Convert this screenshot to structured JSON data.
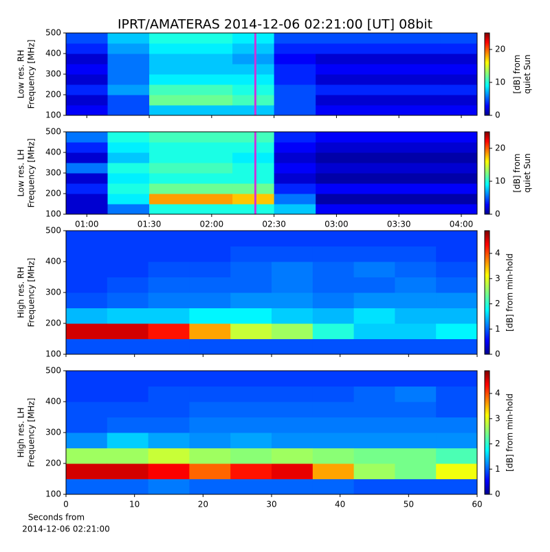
{
  "title": "IPRT/AMATERAS 2014-12-06 02:21:00 [UT]   08bit",
  "xlabel": [
    "Seconds from",
    "2014-12-06 02:21:00"
  ],
  "chart_data": [
    {
      "type": "heatmap",
      "ylabel": [
        "Low res. RH",
        "Frequency [MHz]"
      ],
      "zlabel": [
        "[dB] from",
        "quiet Sun"
      ],
      "x_edges": [
        50,
        70,
        90,
        110,
        130,
        150,
        170,
        190,
        210,
        230,
        247.6
      ],
      "xlim": [
        50,
        247.6
      ],
      "y_edges": [
        100,
        150,
        200,
        250,
        300,
        350,
        400,
        450,
        500
      ],
      "ylim": [
        100,
        500
      ],
      "yticks": [
        100,
        200,
        300,
        400,
        500
      ],
      "zlim": [
        0,
        25
      ],
      "zticks": [
        0,
        10,
        20
      ],
      "colormap": "jet",
      "marker_x": 141,
      "marker_color": "#cc33dd",
      "z": [
        [
          3,
          2,
          4,
          2,
          3,
          2,
          4,
          5
        ],
        [
          5,
          5,
          7,
          6,
          6,
          6,
          7,
          8
        ],
        [
          8,
          12,
          11,
          9,
          8,
          8,
          9,
          10
        ],
        [
          8,
          12,
          11,
          9,
          8,
          8,
          9,
          10
        ],
        [
          8,
          11,
          10,
          9,
          8,
          7,
          8,
          9
        ],
        [
          5,
          5,
          5,
          4,
          4,
          3,
          4,
          5
        ],
        [
          3,
          2,
          4,
          2,
          3,
          2,
          4,
          5
        ],
        [
          3,
          2,
          4,
          2,
          3,
          2,
          4,
          5
        ],
        [
          3,
          2,
          4,
          2,
          3,
          2,
          4,
          5
        ],
        [
          3,
          2,
          4,
          2,
          3,
          2,
          4,
          5
        ]
      ]
    },
    {
      "type": "heatmap",
      "ylabel": [
        "Low res. LH",
        "Frequency [MHz]"
      ],
      "zlabel": [
        "[dB] from",
        "quiet Sun"
      ],
      "x_edges": [
        50,
        70,
        90,
        110,
        130,
        150,
        170,
        190,
        210,
        230,
        247.6
      ],
      "xlim": [
        50,
        247.6
      ],
      "xticks": [
        {
          "value": 60,
          "label": "01:00"
        },
        {
          "value": 90,
          "label": "01:30"
        },
        {
          "value": 120,
          "label": "02:00"
        },
        {
          "value": 150,
          "label": "02:30"
        },
        {
          "value": 180,
          "label": "03:00"
        },
        {
          "value": 210,
          "label": "03:30"
        },
        {
          "value": 240,
          "label": "04:00"
        }
      ],
      "y_edges": [
        100,
        150,
        200,
        250,
        300,
        350,
        400,
        450,
        500
      ],
      "ylim": [
        100,
        500
      ],
      "yticks": [
        100,
        200,
        300,
        400,
        500
      ],
      "zlim": [
        0,
        25
      ],
      "zticks": [
        0,
        10,
        20
      ],
      "colormap": "jet",
      "marker_x": 141,
      "marker_color": "#cc33dd",
      "z": [
        [
          2,
          2,
          4,
          2,
          6,
          2,
          4,
          6
        ],
        [
          6,
          9,
          10,
          9,
          10,
          8,
          9,
          10
        ],
        [
          10,
          18,
          12,
          10,
          11,
          10,
          10,
          11
        ],
        [
          10,
          18,
          12,
          10,
          11,
          10,
          10,
          11
        ],
        [
          10,
          17,
          12,
          10,
          10,
          9,
          10,
          11
        ],
        [
          8,
          6,
          4,
          2,
          3,
          2,
          3,
          4
        ],
        [
          3,
          1,
          3,
          1,
          2,
          1,
          2,
          3
        ],
        [
          3,
          1,
          3,
          1,
          2,
          1,
          2,
          3
        ],
        [
          3,
          1,
          3,
          1,
          2,
          1,
          2,
          3
        ],
        [
          3,
          1,
          3,
          1,
          2,
          1,
          2,
          3
        ]
      ]
    },
    {
      "type": "heatmap",
      "ylabel": [
        "High res. RH",
        "Frequency [MHz]"
      ],
      "zlabel": [
        "[dB] from min-hold"
      ],
      "x_edges": [
        0,
        6,
        12,
        18,
        24,
        30,
        36,
        42,
        48,
        54,
        60
      ],
      "xlim": [
        0,
        60
      ],
      "y_edges": [
        100,
        150,
        200,
        250,
        300,
        350,
        400,
        450,
        500
      ],
      "ylim": [
        100,
        500
      ],
      "yticks": [
        100,
        200,
        300,
        400,
        500
      ],
      "zlim": [
        0,
        4.9
      ],
      "zticks": [
        0,
        1,
        2,
        3,
        4
      ],
      "colormap": "jet",
      "z": [
        [
          1.0,
          4.5,
          1.5,
          1.0,
          0.9,
          0.9,
          0.9,
          0.9
        ],
        [
          1.0,
          4.5,
          1.6,
          1.1,
          1.0,
          0.9,
          0.9,
          0.9
        ],
        [
          1.0,
          4.2,
          1.6,
          1.2,
          1.1,
          1.0,
          0.9,
          0.9
        ],
        [
          1.0,
          3.5,
          1.8,
          1.2,
          1.1,
          1.0,
          0.9,
          0.9
        ],
        [
          1.0,
          2.8,
          1.8,
          1.3,
          1.1,
          1.1,
          1.0,
          0.9
        ],
        [
          1.0,
          2.6,
          1.6,
          1.3,
          1.2,
          1.2,
          1.0,
          0.9
        ],
        [
          1.0,
          2.0,
          1.5,
          1.2,
          1.1,
          1.1,
          1.0,
          0.9
        ],
        [
          1.0,
          1.6,
          1.7,
          1.3,
          1.1,
          1.2,
          1.0,
          0.9
        ],
        [
          1.0,
          1.6,
          1.5,
          1.3,
          1.2,
          1.1,
          1.0,
          0.9
        ],
        [
          1.0,
          1.8,
          1.5,
          1.3,
          1.1,
          1.0,
          0.9,
          0.9
        ]
      ]
    },
    {
      "type": "heatmap",
      "ylabel": [
        "High res. LH",
        "Frequency [MHz]"
      ],
      "zlabel": [
        "[dB] from min-hold"
      ],
      "x_edges": [
        0,
        6,
        12,
        18,
        24,
        30,
        36,
        42,
        48,
        54,
        60
      ],
      "xlim": [
        0,
        60
      ],
      "xticks": [
        0,
        10,
        20,
        30,
        40,
        50,
        60
      ],
      "y_edges": [
        100,
        150,
        200,
        250,
        300,
        350,
        400,
        450,
        500
      ],
      "ylim": [
        100,
        500
      ],
      "yticks": [
        100,
        200,
        300,
        400,
        500
      ],
      "zlim": [
        0,
        4.9
      ],
      "zticks": [
        0,
        1,
        2,
        3,
        4
      ],
      "colormap": "jet",
      "z": [
        [
          1.1,
          4.5,
          2.6,
          1.3,
          1.0,
          1.0,
          0.9,
          0.9
        ],
        [
          1.1,
          4.5,
          2.6,
          1.6,
          1.1,
          1.0,
          0.9,
          0.9
        ],
        [
          1.2,
          4.3,
          2.8,
          1.4,
          1.1,
          1.0,
          1.0,
          0.9
        ],
        [
          1.1,
          3.8,
          2.6,
          1.3,
          1.2,
          1.1,
          1.0,
          0.9
        ],
        [
          1.1,
          4.2,
          2.5,
          1.4,
          1.2,
          1.1,
          1.0,
          0.9
        ],
        [
          1.1,
          4.4,
          2.6,
          1.3,
          1.2,
          1.1,
          1.0,
          0.9
        ],
        [
          1.1,
          3.5,
          2.5,
          1.3,
          1.2,
          1.1,
          1.0,
          0.9
        ],
        [
          1.0,
          2.6,
          2.4,
          1.3,
          1.2,
          1.1,
          1.1,
          0.9
        ],
        [
          1.0,
          2.4,
          2.4,
          1.3,
          1.2,
          1.1,
          1.2,
          0.9
        ],
        [
          1.0,
          3.0,
          2.2,
          1.3,
          1.2,
          1.0,
          1.0,
          0.9
        ]
      ]
    }
  ]
}
